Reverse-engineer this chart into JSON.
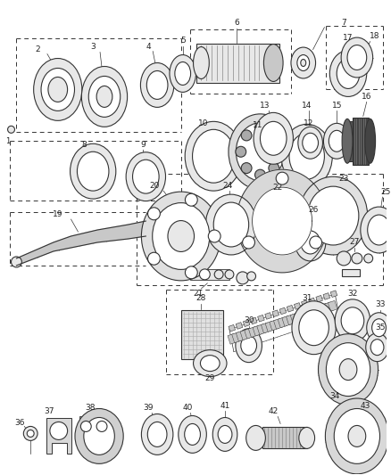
{
  "bg_color": "#ffffff",
  "line_color": "#333333",
  "text_color": "#222222",
  "gray_fill": "#c8c8c8",
  "light_fill": "#e8e8e8",
  "dark_fill": "#555555",
  "figsize": [
    4.39,
    5.33
  ],
  "dpi": 100
}
